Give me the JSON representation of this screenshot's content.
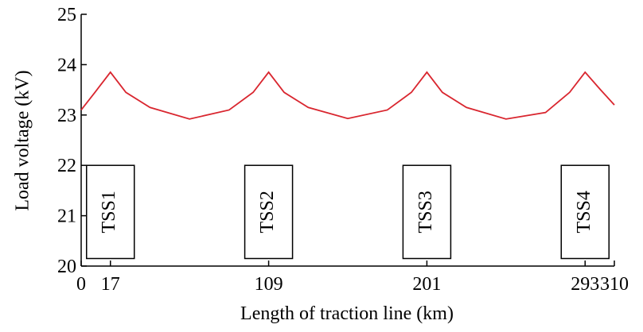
{
  "chart_data": {
    "type": "line",
    "xlabel": "Length of traction line (km)",
    "ylabel": "Load voltage (kV)",
    "xlim": [
      0,
      310
    ],
    "xticks": [
      0,
      17,
      109,
      201,
      293,
      310
    ],
    "ylim": [
      20,
      25
    ],
    "yticks": [
      20,
      21,
      22,
      23,
      24,
      25
    ],
    "grid": false,
    "x": [
      0,
      8,
      17,
      26,
      40,
      63,
      86,
      100,
      109,
      118,
      132,
      155,
      178,
      192,
      201,
      210,
      224,
      247,
      270,
      284,
      293,
      302,
      310
    ],
    "series": [
      {
        "name": "Load voltage",
        "color": "#d9262f",
        "values": [
          23.1,
          23.45,
          23.85,
          23.45,
          23.15,
          22.92,
          23.1,
          23.45,
          23.85,
          23.45,
          23.15,
          22.93,
          23.1,
          23.45,
          23.85,
          23.45,
          23.15,
          22.92,
          23.05,
          23.45,
          23.85,
          23.5,
          23.2
        ]
      }
    ],
    "annotations": [
      {
        "text": "TSS1",
        "x": 17
      },
      {
        "text": "TSS2",
        "x": 109
      },
      {
        "text": "TSS3",
        "x": 201
      },
      {
        "text": "TSS4",
        "x": 293
      }
    ]
  }
}
